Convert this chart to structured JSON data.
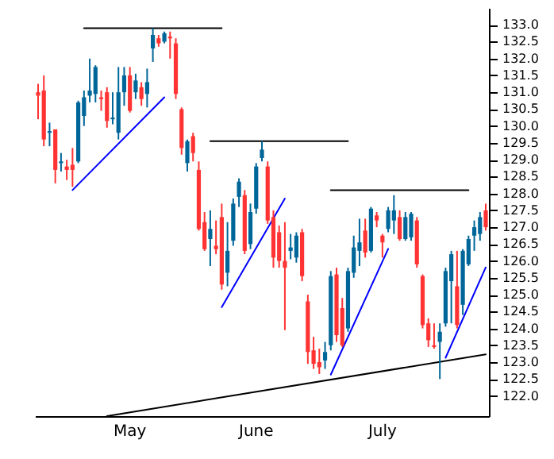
{
  "chart_data": {
    "type": "candlestick",
    "categories": [
      null,
      null,
      null,
      null,
      null,
      null,
      null,
      null,
      null,
      null,
      null,
      null,
      null,
      null,
      null,
      null,
      "May",
      null,
      null,
      null,
      null,
      null,
      null,
      null,
      null,
      null,
      null,
      null,
      null,
      null,
      null,
      null,
      null,
      null,
      null,
      null,
      null,
      null,
      "June",
      null,
      null,
      null,
      null,
      null,
      null,
      null,
      null,
      null,
      null,
      null,
      null,
      null,
      null,
      null,
      null,
      null,
      null,
      null,
      null,
      null,
      "July",
      null,
      null,
      null,
      null,
      null,
      null,
      null,
      null,
      null,
      null,
      null,
      null,
      null,
      null,
      null,
      null,
      null,
      null
    ],
    "ylim": [
      121.4,
      133.5
    ],
    "yticks": [
      {
        "value": 122,
        "label": "122.0"
      },
      122.5,
      {
        "value": 123,
        "label": "123.0"
      },
      123.5,
      {
        "value": 124,
        "label": "124.0"
      },
      124.5,
      {
        "value": 125,
        "label": "125.0"
      },
      125.5,
      {
        "value": 126,
        "label": "126.0"
      },
      126.5,
      {
        "value": 127,
        "label": "127.0"
      },
      127.5,
      {
        "value": 128,
        "label": "128.0"
      },
      128.5,
      {
        "value": 129,
        "label": "129.0"
      },
      129.5,
      {
        "value": 130,
        "label": "130.0"
      },
      130.5,
      {
        "value": 131,
        "label": "131.0"
      },
      131.5,
      {
        "value": 132,
        "label": "132.0"
      },
      132.5,
      {
        "value": 133,
        "label": "133.0"
      }
    ],
    "series": [
      {
        "type": "line",
        "color": "#000000",
        "values": [
          null,
          null,
          null,
          null,
          null,
          null,
          null,
          null,
          132.9,
          null,
          null,
          null,
          null,
          null,
          null,
          null,
          null,
          null,
          null,
          null,
          null,
          null,
          null,
          null,
          null,
          null,
          null,
          null,
          null,
          null,
          null,
          null,
          132.9,
          null,
          null,
          null,
          null,
          null,
          null,
          null,
          null,
          null,
          null,
          null,
          null,
          null,
          null,
          null,
          null,
          null,
          null,
          null,
          null,
          null,
          null,
          null,
          null,
          null,
          null,
          null,
          null,
          null,
          null,
          null,
          null,
          null,
          null,
          null,
          null,
          null,
          null,
          null,
          null,
          null,
          null,
          null,
          null,
          null,
          null
        ]
      },
      {
        "type": "line",
        "color": "#000000",
        "values": [
          null,
          null,
          null,
          null,
          null,
          null,
          null,
          null,
          null,
          null,
          null,
          null,
          null,
          null,
          null,
          null,
          null,
          null,
          null,
          null,
          null,
          null,
          null,
          null,
          null,
          null,
          null,
          null,
          null,
          null,
          129.55,
          null,
          null,
          null,
          null,
          null,
          null,
          null,
          null,
          null,
          null,
          null,
          null,
          null,
          null,
          null,
          null,
          null,
          null,
          null,
          null,
          null,
          null,
          null,
          129.55,
          null,
          null,
          null,
          null,
          null,
          null,
          null,
          null,
          null,
          null,
          null,
          null,
          null,
          null,
          null,
          null,
          null,
          null,
          null,
          null,
          null,
          null,
          null,
          null
        ]
      },
      {
        "type": "line",
        "color": "#000000",
        "values": [
          null,
          null,
          null,
          null,
          null,
          null,
          null,
          null,
          null,
          null,
          null,
          null,
          null,
          null,
          null,
          null,
          null,
          null,
          null,
          null,
          null,
          null,
          null,
          null,
          null,
          null,
          null,
          null,
          null,
          null,
          null,
          null,
          null,
          null,
          null,
          null,
          null,
          null,
          null,
          null,
          null,
          null,
          null,
          null,
          null,
          null,
          null,
          null,
          null,
          null,
          null,
          128.1,
          null,
          null,
          null,
          null,
          null,
          null,
          null,
          null,
          null,
          null,
          null,
          null,
          null,
          null,
          null,
          null,
          null,
          null,
          null,
          null,
          null,
          null,
          null,
          128.1,
          null,
          null,
          null
        ]
      },
      {
        "type": "line",
        "color": "#0000ff",
        "values": [
          null,
          null,
          null,
          null,
          null,
          null,
          128.1,
          null,
          null,
          null,
          null,
          null,
          null,
          null,
          null,
          null,
          null,
          null,
          null,
          null,
          null,
          null,
          130.85,
          null,
          null,
          null,
          null,
          null,
          null,
          null,
          null,
          null,
          null,
          null,
          null,
          null,
          null,
          null,
          null,
          null,
          null,
          null,
          null,
          null,
          null,
          null,
          null,
          null,
          null,
          null,
          null,
          null,
          null,
          null,
          null,
          null,
          null,
          null,
          null,
          null,
          null,
          null,
          null,
          null,
          null,
          null,
          null,
          null,
          null,
          null,
          null,
          null,
          null,
          null,
          null,
          null,
          null,
          null,
          null
        ]
      },
      {
        "type": "line",
        "color": "#0000ff",
        "values": [
          null,
          null,
          null,
          null,
          null,
          null,
          null,
          null,
          null,
          null,
          null,
          null,
          null,
          null,
          null,
          null,
          null,
          null,
          null,
          null,
          null,
          null,
          null,
          null,
          null,
          null,
          null,
          null,
          null,
          null,
          null,
          null,
          124.63,
          null,
          null,
          null,
          null,
          null,
          null,
          null,
          null,
          null,
          null,
          127.85,
          null,
          null,
          null,
          null,
          null,
          null,
          null,
          null,
          null,
          null,
          null,
          null,
          null,
          null,
          null,
          null,
          null,
          null,
          null,
          null,
          null,
          null,
          null,
          null,
          null,
          null,
          null,
          null,
          null,
          null,
          null,
          null,
          null,
          null,
          null
        ]
      },
      {
        "type": "line",
        "color": "#0000ff",
        "values": [
          null,
          null,
          null,
          null,
          null,
          null,
          null,
          null,
          null,
          null,
          null,
          null,
          null,
          null,
          null,
          null,
          null,
          null,
          null,
          null,
          null,
          null,
          null,
          null,
          null,
          null,
          null,
          null,
          null,
          null,
          null,
          null,
          null,
          null,
          null,
          null,
          null,
          null,
          null,
          null,
          null,
          null,
          null,
          null,
          null,
          null,
          null,
          null,
          null,
          null,
          null,
          122.63,
          null,
          null,
          null,
          null,
          null,
          null,
          null,
          null,
          null,
          126.36,
          null,
          null,
          null,
          null,
          null,
          null,
          null,
          null,
          null,
          null,
          null,
          null,
          null,
          null,
          null,
          null,
          null
        ]
      },
      {
        "type": "line",
        "color": "#0000ff",
        "values": [
          null,
          null,
          null,
          null,
          null,
          null,
          null,
          null,
          null,
          null,
          null,
          null,
          null,
          null,
          null,
          null,
          null,
          null,
          null,
          null,
          null,
          null,
          null,
          null,
          null,
          null,
          null,
          null,
          null,
          null,
          null,
          null,
          null,
          null,
          null,
          null,
          null,
          null,
          null,
          null,
          null,
          null,
          null,
          null,
          null,
          null,
          null,
          null,
          null,
          null,
          null,
          null,
          null,
          null,
          null,
          null,
          null,
          null,
          null,
          null,
          null,
          null,
          null,
          null,
          null,
          null,
          null,
          null,
          null,
          null,
          null,
          123.13,
          null,
          null,
          null,
          null,
          null,
          null,
          125.81
        ]
      },
      {
        "type": "line",
        "color": "#000000",
        "values": [
          null,
          null,
          null,
          null,
          null,
          null,
          null,
          null,
          null,
          null,
          null,
          null,
          121.4,
          null,
          null,
          null,
          null,
          null,
          null,
          null,
          null,
          null,
          null,
          null,
          null,
          null,
          null,
          null,
          null,
          null,
          null,
          null,
          null,
          null,
          null,
          null,
          null,
          null,
          null,
          null,
          null,
          null,
          null,
          null,
          null,
          null,
          null,
          null,
          null,
          null,
          null,
          null,
          null,
          null,
          null,
          null,
          null,
          null,
          null,
          null,
          null,
          null,
          null,
          null,
          null,
          null,
          null,
          null,
          null,
          null,
          null,
          null,
          null,
          null,
          null,
          null,
          null,
          null,
          123.23
        ]
      },
      {
        "ohlc": [
          [
            131.0,
            131.25,
            130.2,
            130.9
          ],
          [
            131.05,
            131.5,
            129.4,
            129.6
          ],
          [
            129.8,
            130.1,
            129.4,
            129.85
          ],
          [
            129.9,
            129.9,
            128.3,
            128.7
          ],
          [
            128.9,
            129.2,
            128.65,
            128.95
          ],
          [
            128.8,
            129.0,
            128.4,
            128.7
          ],
          [
            128.85,
            129.35,
            128.2,
            128.7
          ],
          [
            128.95,
            130.75,
            128.9,
            130.7
          ],
          [
            130.3,
            131.05,
            130.0,
            130.85
          ],
          [
            130.9,
            132.0,
            130.7,
            131.05
          ],
          [
            130.95,
            131.8,
            130.7,
            131.75
          ],
          [
            130.85,
            131.05,
            130.45,
            130.8
          ],
          [
            131.0,
            131.15,
            129.95,
            130.15
          ],
          [
            130.2,
            131.0,
            130.05,
            130.25
          ],
          [
            129.8,
            131.75,
            129.6,
            131.0
          ],
          [
            131.0,
            131.75,
            130.6,
            131.5
          ],
          [
            131.5,
            131.75,
            130.4,
            130.45
          ],
          [
            131.0,
            131.55,
            130.8,
            131.35
          ],
          [
            131.15,
            131.3,
            130.6,
            130.8
          ],
          [
            130.95,
            131.7,
            130.55,
            131.3
          ],
          [
            132.3,
            132.9,
            131.9,
            132.7
          ],
          [
            132.6,
            132.7,
            132.35,
            132.45
          ],
          [
            132.5,
            132.8,
            132.45,
            132.75
          ],
          [
            132.65,
            132.8,
            132.0,
            132.6
          ],
          [
            132.45,
            132.6,
            130.8,
            130.95
          ],
          [
            130.5,
            130.55,
            129.15,
            129.35
          ],
          [
            128.9,
            129.6,
            128.65,
            129.55
          ],
          [
            129.7,
            129.8,
            128.95,
            129.2
          ],
          [
            128.7,
            128.95,
            126.9,
            126.95
          ],
          [
            127.15,
            127.45,
            126.3,
            126.35
          ],
          [
            126.65,
            127.5,
            125.85,
            126.95
          ],
          [
            126.45,
            127.2,
            126.2,
            126.35
          ],
          [
            127.3,
            127.7,
            125.15,
            125.3
          ],
          [
            125.65,
            127.15,
            125.25,
            126.3
          ],
          [
            126.6,
            127.85,
            126.45,
            127.7
          ],
          [
            127.9,
            128.45,
            127.6,
            128.35
          ],
          [
            127.95,
            128.1,
            126.2,
            126.3
          ],
          [
            126.5,
            127.7,
            126.35,
            127.45
          ],
          [
            127.55,
            128.9,
            127.4,
            128.8
          ],
          [
            129.05,
            129.55,
            128.95,
            129.3
          ],
          [
            128.8,
            128.95,
            127.1,
            127.2
          ],
          [
            127.3,
            127.5,
            125.8,
            126.1
          ],
          [
            126.85,
            127.05,
            125.8,
            126.0
          ],
          [
            126.0,
            127.15,
            123.95,
            125.8
          ],
          [
            126.3,
            126.8,
            126.05,
            126.4
          ],
          [
            126.1,
            126.85,
            125.95,
            126.75
          ],
          [
            126.85,
            126.95,
            125.4,
            125.55
          ],
          [
            124.8,
            125.0,
            122.95,
            123.3
          ],
          [
            123.35,
            123.75,
            122.8,
            122.95
          ],
          [
            123.0,
            123.4,
            122.65,
            122.85
          ],
          [
            123.05,
            123.6,
            122.8,
            123.3
          ],
          [
            123.5,
            125.7,
            123.35,
            125.55
          ],
          [
            125.6,
            125.8,
            123.6,
            123.8
          ],
          [
            124.6,
            124.9,
            123.45,
            123.5
          ],
          [
            124.0,
            125.8,
            123.9,
            125.7
          ],
          [
            125.65,
            126.75,
            125.5,
            126.4
          ],
          [
            126.3,
            127.25,
            125.85,
            126.55
          ],
          [
            126.9,
            127.25,
            126.1,
            126.25
          ],
          [
            126.3,
            127.6,
            126.25,
            127.55
          ],
          [
            127.35,
            127.45,
            127.0,
            127.2
          ],
          [
            126.75,
            126.8,
            126.1,
            126.55
          ],
          [
            126.95,
            127.6,
            126.85,
            127.5
          ],
          [
            127.2,
            127.95,
            126.8,
            127.5
          ],
          [
            127.3,
            127.5,
            126.6,
            126.65
          ],
          [
            126.65,
            127.45,
            126.6,
            127.3
          ],
          [
            126.7,
            127.45,
            126.6,
            127.4
          ],
          [
            127.2,
            127.3,
            125.8,
            125.9
          ],
          [
            125.55,
            125.6,
            124.0,
            124.1
          ],
          [
            124.15,
            124.3,
            123.45,
            123.65
          ],
          [
            123.5,
            124.15,
            123.4,
            123.45
          ],
          [
            123.6,
            124.15,
            122.5,
            123.9
          ],
          [
            124.15,
            125.8,
            124.05,
            125.7
          ],
          [
            125.4,
            126.3,
            124.15,
            126.2
          ],
          [
            125.25,
            126.3,
            124.0,
            124.1
          ],
          [
            124.7,
            126.35,
            124.4,
            126.3
          ],
          [
            125.9,
            126.75,
            125.85,
            126.65
          ],
          [
            126.75,
            127.2,
            126.3,
            127.0
          ],
          [
            126.8,
            127.45,
            126.6,
            127.3
          ],
          [
            127.5,
            127.7,
            126.9,
            127.0
          ]
        ],
        "colors": [
          "#ff3333",
          "#ff3333",
          "#006699",
          "#ff3333",
          "#006699",
          "#ff3333",
          "#ff3333",
          "#006699",
          "#006699",
          "#006699",
          "#006699",
          "#ff3333",
          "#ff3333",
          "#006699",
          "#006699",
          "#006699",
          "#ff3333",
          "#006699",
          "#ff3333",
          "#006699",
          "#006699",
          "#ff3333",
          "#006699",
          "#ff3333",
          "#ff3333",
          "#ff3333",
          "#006699",
          "#ff3333",
          "#ff3333",
          "#ff3333",
          "#006699",
          "#ff3333",
          "#ff3333",
          "#006699",
          "#006699",
          "#006699",
          "#ff3333",
          "#006699",
          "#006699",
          "#006699",
          "#ff3333",
          "#ff3333",
          "#ff3333",
          "#ff3333",
          "#006699",
          "#006699",
          "#ff3333",
          "#ff3333",
          "#ff3333",
          "#ff3333",
          "#006699",
          "#006699",
          "#ff3333",
          "#ff3333",
          "#006699",
          "#006699",
          "#006699",
          "#ff3333",
          "#006699",
          "#ff3333",
          "#ff3333",
          "#006699",
          "#006699",
          "#ff3333",
          "#006699",
          "#006699",
          "#ff3333",
          "#ff3333",
          "#ff3333",
          "#ff3333",
          "#006699",
          "#006699",
          "#006699",
          "#ff3333",
          "#006699",
          "#006699",
          "#006699",
          "#006699",
          "#ff3333"
        ]
      }
    ]
  }
}
